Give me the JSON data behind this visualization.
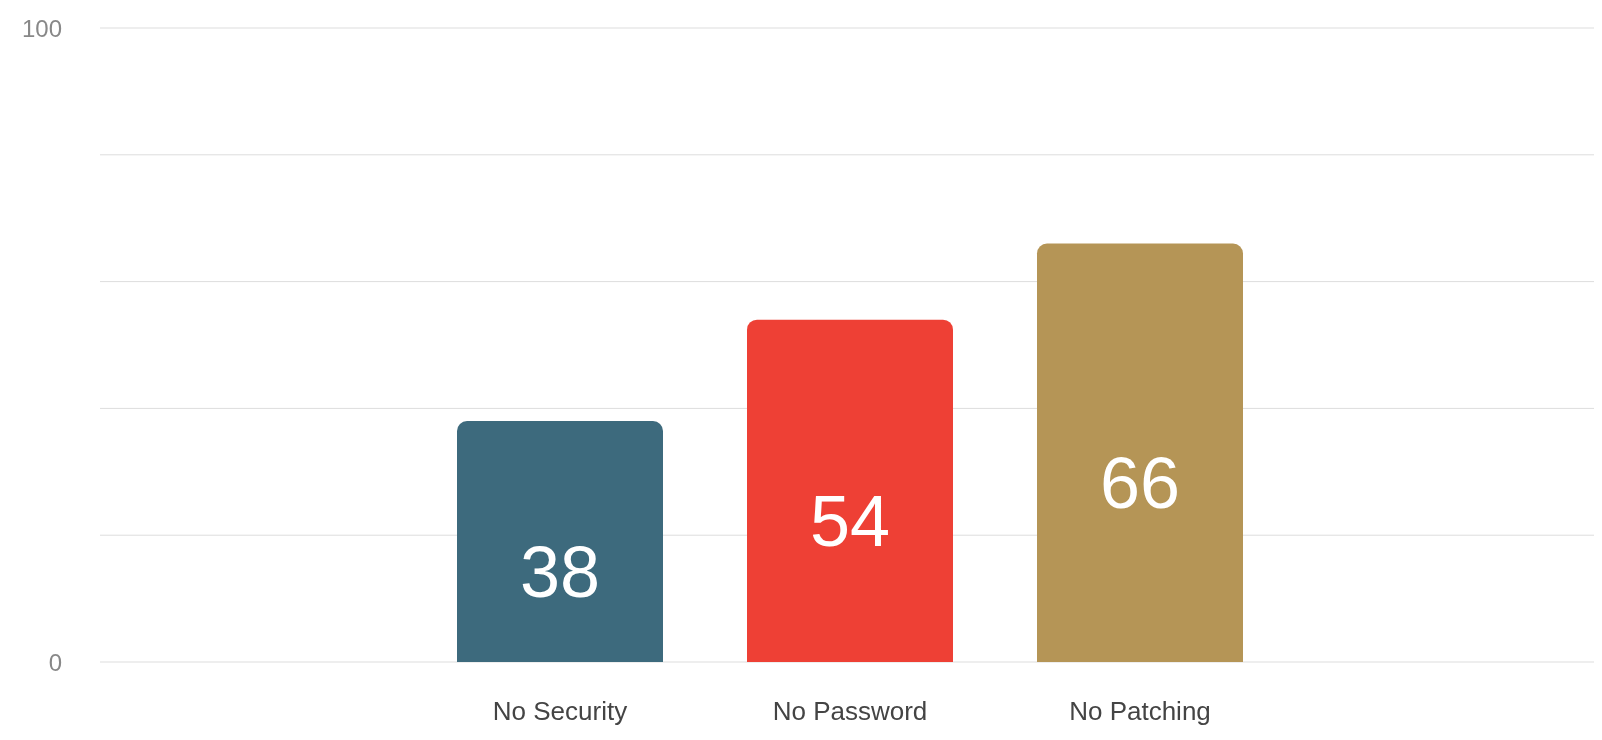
{
  "chart_data": {
    "type": "bar",
    "categories": [
      "No Security",
      "No Password",
      "No Patching"
    ],
    "values": [
      38,
      54,
      66
    ],
    "colors": [
      "#3d6a7d",
      "#ee4035",
      "#b59556"
    ],
    "ylim": [
      0,
      100
    ],
    "yticks": [
      0,
      {
        "value": 20,
        "label": null
      },
      {
        "value": 40,
        "label": null
      },
      {
        "value": 60,
        "label": null
      },
      {
        "value": 80,
        "label": null
      },
      100
    ],
    "grid": "y",
    "data_labels": true
  }
}
